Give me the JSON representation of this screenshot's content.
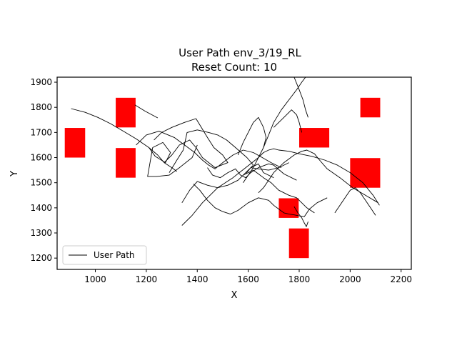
{
  "chart_data": {
    "type": "line",
    "title": "User Path env_3/19_RL",
    "subtitle": "Reset Count: 10",
    "xlabel": "X",
    "ylabel": "Y",
    "xlim": [
      850,
      2240
    ],
    "ylim": [
      1155,
      1920
    ],
    "xticks": [
      1000,
      1200,
      1400,
      1600,
      1800,
      2000,
      2200
    ],
    "yticks": [
      1200,
      1300,
      1400,
      1500,
      1600,
      1700,
      1800,
      1900
    ],
    "grid": false,
    "legend": {
      "placement": "lower-left",
      "entries": [
        "User Path"
      ]
    },
    "obstacle_color": "#ff0000",
    "path_color": "#000000",
    "obstacles": [
      {
        "x": [
          880,
          960
        ],
        "y": [
          1600,
          1718
        ]
      },
      {
        "x": [
          1080,
          1158
        ],
        "y": [
          1720,
          1838
        ]
      },
      {
        "x": [
          1080,
          1158
        ],
        "y": [
          1520,
          1638
        ]
      },
      {
        "x": [
          1800,
          1918
        ],
        "y": [
          1640,
          1718
        ]
      },
      {
        "x": [
          2040,
          2118
        ],
        "y": [
          1760,
          1838
        ]
      },
      {
        "x": [
          2000,
          2118
        ],
        "y": [
          1480,
          1598
        ]
      },
      {
        "x": [
          1720,
          1798
        ],
        "y": [
          1360,
          1438
        ]
      },
      {
        "x": [
          1760,
          1838
        ],
        "y": [
          1200,
          1318
        ]
      }
    ],
    "series": [
      {
        "name": "User Path",
        "segments": [
          {
            "x": [
              905,
              960,
              1010,
              1060,
              1110,
              1160,
              1210,
              1245,
              1270,
              1300,
              1320
            ],
            "y": [
              1795,
              1780,
              1760,
              1735,
              1705,
              1675,
              1640,
              1610,
              1580,
              1560,
              1545
            ]
          },
          {
            "x": [
              1155,
              1195,
              1245
            ],
            "y": [
              1810,
              1785,
              1758
            ]
          },
          {
            "x": [
              1160,
              1200,
              1250,
              1310,
              1350,
              1390,
              1420,
              1445,
              1470,
              1500,
              1540,
              1580,
              1620,
              1655,
              1690,
              1730
            ],
            "y": [
              1650,
              1690,
              1705,
              1680,
              1650,
              1620,
              1590,
              1570,
              1555,
              1580,
              1610,
              1630,
              1620,
              1600,
              1580,
              1560
            ]
          },
          {
            "x": [
              1210,
              1235,
              1275,
              1295,
              1265,
              1225,
              1205,
              1240,
              1290,
              1330,
              1380,
              1400
            ],
            "y": [
              1640,
              1605,
              1580,
              1620,
              1660,
              1640,
              1525,
              1525,
              1530,
              1560,
              1600,
              1650
            ]
          },
          {
            "x": [
              1230,
              1260,
              1300,
              1350,
              1395,
              1425,
              1440,
              1465,
              1500,
              1520,
              1470,
              1420,
              1395,
              1370,
              1330,
              1300,
              1270
            ],
            "y": [
              1670,
              1700,
              1720,
              1740,
              1755,
              1705,
              1680,
              1640,
              1610,
              1580,
              1560,
              1600,
              1640,
              1670,
              1650,
              1610,
              1580
            ]
          },
          {
            "x": [
              1290,
              1320,
              1345,
              1360,
              1400,
              1445,
              1480,
              1515,
              1550,
              1595,
              1620,
              1590,
              1560,
              1520,
              1480,
              1440,
              1400,
              1370,
              1340
            ],
            "y": [
              1540,
              1590,
              1630,
              1700,
              1710,
              1700,
              1690,
              1670,
              1640,
              1600,
              1570,
              1540,
              1510,
              1490,
              1480,
              1490,
              1505,
              1470,
              1420
            ]
          },
          {
            "x": [
              1340,
              1380,
              1420,
              1450,
              1480,
              1510,
              1540,
              1565,
              1590,
              1615,
              1640,
              1660,
              1680,
              1700,
              1720,
              1760,
              1800,
              1850,
              1900,
              1950,
              2000,
              2050,
              2090,
              2115
            ],
            "y": [
              1330,
              1370,
              1420,
              1450,
              1480,
              1500,
              1520,
              1540,
              1560,
              1580,
              1600,
              1620,
              1630,
              1635,
              1630,
              1625,
              1615,
              1605,
              1590,
              1570,
              1540,
              1500,
              1450,
              1410
            ]
          },
          {
            "x": [
              1385,
              1410,
              1440,
              1470,
              1500,
              1530,
              1560,
              1600,
              1640,
              1680,
              1700,
              1720,
              1740,
              1760,
              1780,
              1800,
              1820,
              1840,
              1870,
              1910
            ],
            "y": [
              1495,
              1470,
              1430,
              1400,
              1385,
              1375,
              1390,
              1420,
              1440,
              1430,
              1410,
              1395,
              1380,
              1375,
              1372,
              1368,
              1365,
              1395,
              1420,
              1440
            ]
          },
          {
            "x": [
              1440,
              1460,
              1490,
              1520,
              1550,
              1570,
              1590,
              1610,
              1640,
              1680,
              1700,
              1740,
              1790
            ],
            "y": [
              1560,
              1530,
              1520,
              1540,
              1555,
              1530,
              1520,
              1540,
              1560,
              1575,
              1570,
              1535,
              1510
            ]
          },
          {
            "x": [
              1560,
              1580,
              1600,
              1620,
              1640,
              1660,
              1670,
              1660,
              1640,
              1620,
              1600,
              1580
            ],
            "y": [
              1610,
              1660,
              1700,
              1740,
              1760,
              1720,
              1680,
              1640,
              1600,
              1560,
              1530,
              1500
            ]
          },
          {
            "x": [
              1580,
              1600,
              1620,
              1640,
              1660,
              1690,
              1720,
              1760,
              1790,
              1810,
              1830,
              1860
            ],
            "y": [
              1530,
              1540,
              1550,
              1535,
              1520,
              1500,
              1470,
              1450,
              1440,
              1420,
              1400,
              1380
            ]
          },
          {
            "x": [
              1590,
              1610,
              1640,
              1660,
              1700
            ],
            "y": [
              1535,
              1560,
              1575,
              1540,
              1520
            ]
          },
          {
            "x": [
              1640,
              1660,
              1680,
              1700,
              1720,
              1740,
              1780,
              1810,
              1830,
              1860,
              1880,
              1910,
              1960,
              2010,
              2060,
              2110
            ],
            "y": [
              1460,
              1480,
              1510,
              1540,
              1560,
              1580,
              1610,
              1625,
              1630,
              1615,
              1590,
              1555,
              1520,
              1480,
              1450,
              1420
            ]
          },
          {
            "x": [
              1660,
              1680,
              1700,
              1730,
              1760,
              1790,
              1810,
              1825
            ],
            "y": [
              1640,
              1690,
              1740,
              1790,
              1830,
              1870,
              1900,
              1920
            ]
          },
          {
            "x": [
              1700,
              1740,
              1770,
              1790,
              1800,
              1810
            ],
            "y": [
              1720,
              1760,
              1790,
              1770,
              1740,
              1700
            ]
          },
          {
            "x": [
              1780,
              1800,
              1815,
              1825,
              1835
            ],
            "y": [
              1920,
              1870,
              1830,
              1790,
              1760
            ]
          },
          {
            "x": [
              1780,
              1795,
              1810,
              1820,
              1828,
              1835
            ],
            "y": [
              1405,
              1380,
              1360,
              1340,
              1325,
              1345
            ]
          },
          {
            "x": [
              1940,
              1960,
              1980,
              2000,
              2020,
              2040,
              2060,
              2080,
              2100
            ],
            "y": [
              1380,
              1410,
              1440,
              1470,
              1480,
              1460,
              1430,
              1400,
              1370
            ]
          },
          {
            "x": [
              1610,
              1640,
              1680,
              1720,
              1760
            ],
            "y": [
              1560,
              1555,
              1550,
              1560,
              1580
            ]
          }
        ]
      }
    ]
  }
}
